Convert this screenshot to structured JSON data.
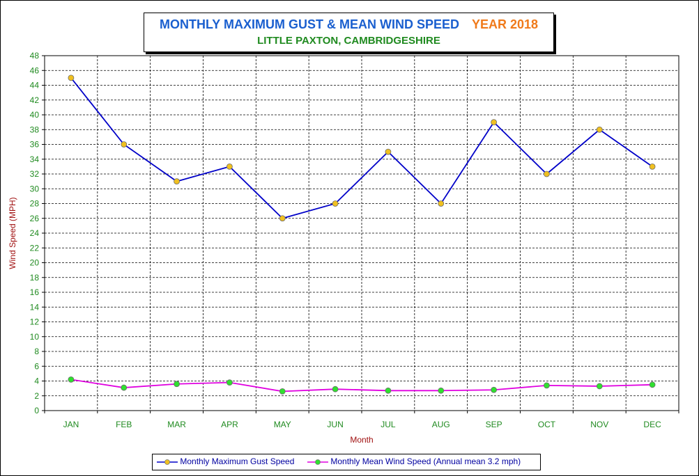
{
  "title": {
    "main": "MONTHLY MAXIMUM GUST & MEAN WIND SPEED",
    "year": "YEAR 2018",
    "subtitle": "LITTLE PAXTON, CAMBRIDGESHIRE"
  },
  "colors": {
    "title_main": "#1a5fcf",
    "title_year": "#f07a1a",
    "subtitle": "#1f8a1f",
    "axis_label": "#a01010",
    "tick_label": "#1f8a1f",
    "gust_line": "#0000c8",
    "gust_marker": "#f0c020",
    "mean_line": "#e000e0",
    "mean_marker": "#30e030"
  },
  "chart_data": {
    "type": "line",
    "xlabel": "Month",
    "ylabel": "Wind Speed (MPH)",
    "ylim": [
      0,
      48
    ],
    "y_tick_step": 2,
    "grid": true,
    "legend_position": "bottom",
    "categories": [
      "JAN",
      "FEB",
      "MAR",
      "APR",
      "MAY",
      "JUN",
      "JUL",
      "AUG",
      "SEP",
      "OCT",
      "NOV",
      "DEC"
    ],
    "series": [
      {
        "name": "Monthly Maximum Gust Speed",
        "values": [
          45,
          36,
          31,
          33,
          26,
          28,
          35,
          28,
          39,
          32,
          38,
          33
        ]
      },
      {
        "name": "Monthly Mean Wind Speed (Annual mean 3.2 mph)",
        "values": [
          4.2,
          3.1,
          3.6,
          3.8,
          2.6,
          2.9,
          2.7,
          2.7,
          2.8,
          3.4,
          3.3,
          3.5
        ]
      }
    ]
  }
}
